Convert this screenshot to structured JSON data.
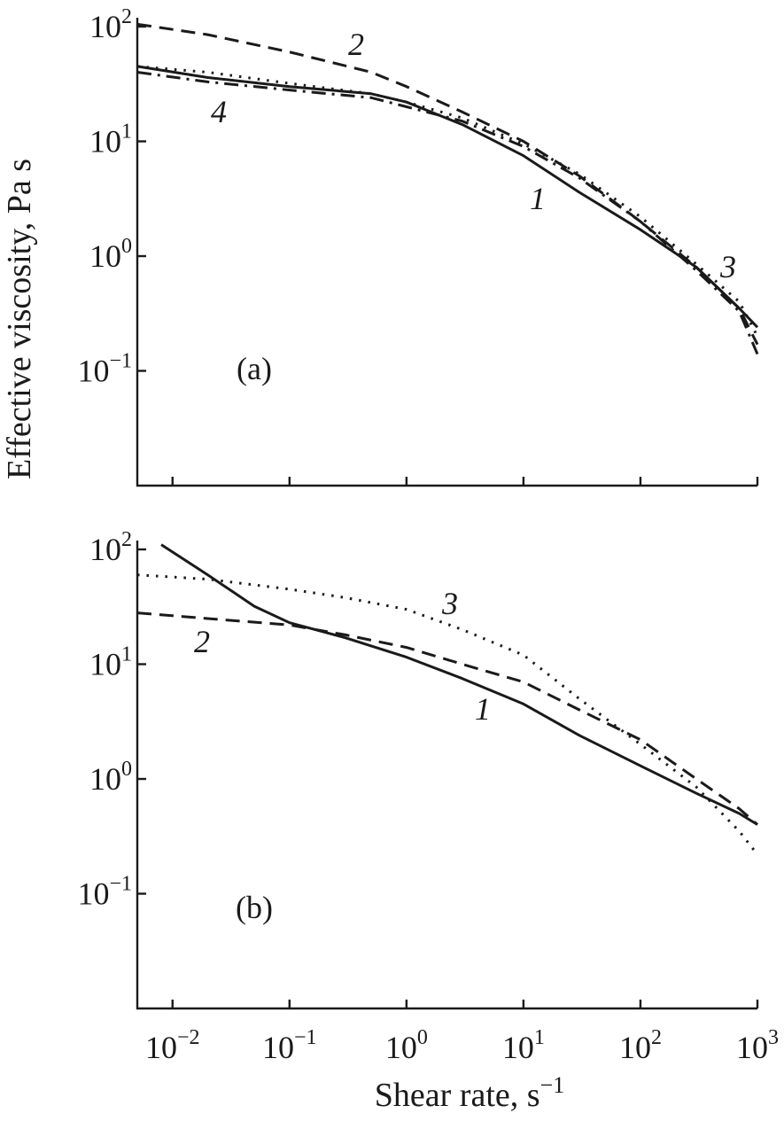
{
  "figure": {
    "ylabel": "Effective viscosity, Pa s",
    "xlabel": "Shear rate, s",
    "xlabel_sup": "−1"
  },
  "chart_data": [
    {
      "type": "line",
      "panel_label": "(a)",
      "x_scale": "log",
      "y_scale": "log",
      "xlim": [
        0.005,
        1000
      ],
      "ylim": [
        0.01,
        100
      ],
      "x_ticks": [
        {
          "base": "10",
          "exp": "−2",
          "value": 0.01
        },
        {
          "base": "10",
          "exp": "−1",
          "value": 0.1
        },
        {
          "base": "10",
          "exp": "0",
          "value": 1
        },
        {
          "base": "10",
          "exp": "1",
          "value": 10
        },
        {
          "base": "10",
          "exp": "2",
          "value": 100
        },
        {
          "base": "10",
          "exp": "3",
          "value": 1000
        }
      ],
      "y_ticks": [
        {
          "base": "10",
          "exp": "2",
          "value": 100
        },
        {
          "base": "10",
          "exp": "1",
          "value": 10
        },
        {
          "base": "10",
          "exp": "0",
          "value": 1
        },
        {
          "base": "10",
          "exp": "−1",
          "value": 0.1
        }
      ],
      "series": [
        {
          "label": "1",
          "style": "solid",
          "x": [
            0.005,
            0.02,
            0.1,
            0.5,
            1,
            3,
            10,
            30,
            100,
            300,
            700,
            1000
          ],
          "y": [
            45,
            36,
            30,
            26,
            22,
            14,
            7.5,
            3.6,
            1.7,
            0.8,
            0.35,
            0.24
          ]
        },
        {
          "label": "2",
          "style": "dashed",
          "x": [
            0.005,
            0.02,
            0.1,
            0.5,
            1,
            3,
            10,
            30,
            100,
            300,
            700,
            1000
          ],
          "y": [
            105,
            85,
            60,
            40,
            30,
            18,
            10,
            5,
            2,
            0.8,
            0.35,
            0.17
          ]
        },
        {
          "label": "3",
          "style": "dotted",
          "x": [
            0.005,
            0.02,
            0.1,
            0.5,
            1,
            3,
            10,
            30,
            100,
            300,
            700,
            1000
          ],
          "y": [
            45,
            40,
            32,
            26,
            22,
            16,
            9.5,
            5.2,
            2.2,
            0.85,
            0.4,
            0.2
          ]
        },
        {
          "label": "4",
          "style": "dashdot",
          "x": [
            0.005,
            0.02,
            0.1,
            0.5,
            1,
            3,
            10,
            30,
            100,
            300,
            700,
            1000
          ],
          "y": [
            40,
            33,
            28,
            24,
            20,
            15,
            9,
            4.8,
            2.0,
            0.75,
            0.33,
            0.14
          ]
        }
      ]
    },
    {
      "type": "line",
      "panel_label": "(b)",
      "x_scale": "log",
      "y_scale": "log",
      "xlim": [
        0.005,
        1000
      ],
      "ylim": [
        0.01,
        100
      ],
      "x_ticks": [
        {
          "base": "10",
          "exp": "−2",
          "value": 0.01
        },
        {
          "base": "10",
          "exp": "−1",
          "value": 0.1
        },
        {
          "base": "10",
          "exp": "0",
          "value": 1
        },
        {
          "base": "10",
          "exp": "1",
          "value": 10
        },
        {
          "base": "10",
          "exp": "2",
          "value": 100
        },
        {
          "base": "10",
          "exp": "3",
          "value": 1000
        }
      ],
      "y_ticks": [
        {
          "base": "10",
          "exp": "2",
          "value": 100
        },
        {
          "base": "10",
          "exp": "1",
          "value": 10
        },
        {
          "base": "10",
          "exp": "0",
          "value": 1
        },
        {
          "base": "10",
          "exp": "−1",
          "value": 0.1
        }
      ],
      "series": [
        {
          "label": "1",
          "style": "solid",
          "x": [
            0.008,
            0.02,
            0.05,
            0.1,
            0.3,
            1,
            3,
            10,
            30,
            100,
            300,
            700,
            1000
          ],
          "y": [
            110,
            60,
            32,
            23,
            17,
            11.5,
            7.5,
            4.5,
            2.4,
            1.3,
            0.75,
            0.5,
            0.4
          ]
        },
        {
          "label": "2",
          "style": "dashed",
          "x": [
            0.005,
            0.02,
            0.1,
            0.3,
            1,
            3,
            10,
            30,
            100,
            300,
            700,
            1000
          ],
          "y": [
            28,
            25,
            22,
            18,
            14,
            10,
            7,
            4,
            2.2,
            1.0,
            0.55,
            0.4
          ]
        },
        {
          "label": "3",
          "style": "dotted",
          "x": [
            0.005,
            0.02,
            0.1,
            0.3,
            1,
            3,
            10,
            30,
            100,
            300,
            700,
            1000
          ],
          "y": [
            60,
            55,
            45,
            38,
            30,
            20,
            12,
            5,
            2.0,
            0.85,
            0.35,
            0.22
          ]
        }
      ]
    }
  ]
}
